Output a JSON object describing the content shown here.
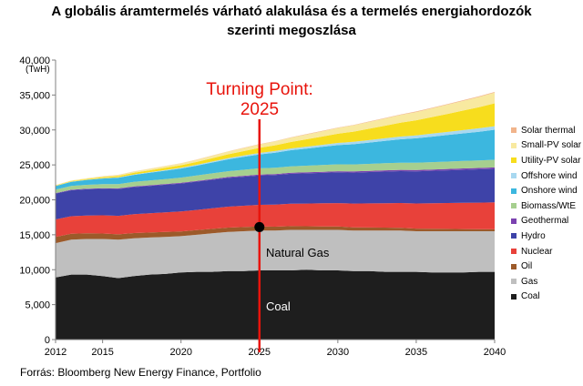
{
  "title": {
    "line1": "A globális áramtermelés várható alakulása és a termelés energiahordozók",
    "line2": "szerinti megoszlása"
  },
  "source": "Forrás: Bloomberg New Energy Finance, Portfolio",
  "annotations": {
    "turning_point_line1": "Turning Point:",
    "turning_point_line2": "2025",
    "natural_gas": "Natural Gas",
    "coal": "Coal"
  },
  "colors": {
    "Coal": "#1e1e1e",
    "Gas": "#bfbfbf",
    "Oil": "#9c5a2a",
    "Nuclear": "#e8413a",
    "Hydro": "#3e43a8",
    "Geothermal": "#7b42b0",
    "Biomass/WtE": "#a6cf8f",
    "Onshore wind": "#3cb7df",
    "Offshore wind": "#a8d8f0",
    "Utility-PV solar": "#f7dd1d",
    "Small-PV solar": "#f8e9a0",
    "Solar thermal": "#f1b48b",
    "turning_point": "#e8140c"
  },
  "chart_data": {
    "type": "area",
    "stacked": true,
    "title": "A globális áramtermelés várható alakulása és a termelés energiahordozók szerinti megoszlása",
    "xlabel": "",
    "ylabel": "(TwH)",
    "xlim": [
      2012,
      2040
    ],
    "ylim": [
      0,
      40000
    ],
    "x_ticks": [
      2012,
      2015,
      2020,
      2025,
      2030,
      2035,
      2040
    ],
    "y_ticks": [
      0,
      5000,
      10000,
      15000,
      20000,
      25000,
      30000,
      35000,
      40000
    ],
    "y_tick_labels": [
      "0",
      "5,000",
      "10,000",
      "15,000",
      "20,000",
      "25,000",
      "30,000",
      "35,000",
      "40,000"
    ],
    "grid": false,
    "legend_position": "right",
    "turning_point": {
      "x": 2025,
      "y": 16100
    },
    "x": [
      2012,
      2013,
      2014,
      2015,
      2016,
      2017,
      2018,
      2019,
      2020,
      2021,
      2022,
      2023,
      2024,
      2025,
      2026,
      2027,
      2028,
      2029,
      2030,
      2031,
      2032,
      2033,
      2034,
      2035,
      2036,
      2037,
      2038,
      2039,
      2040
    ],
    "series": [
      {
        "name": "Coal",
        "values": [
          8900,
          9300,
          9300,
          9100,
          8800,
          9100,
          9300,
          9400,
          9600,
          9700,
          9700,
          9800,
          9800,
          9900,
          9900,
          9900,
          10000,
          9900,
          9900,
          9800,
          9800,
          9700,
          9700,
          9700,
          9600,
          9600,
          9600,
          9700,
          9700
        ]
      },
      {
        "name": "Gas",
        "values": [
          4900,
          5000,
          5100,
          5300,
          5500,
          5400,
          5300,
          5300,
          5200,
          5300,
          5500,
          5600,
          5700,
          5700,
          5700,
          5800,
          5700,
          5800,
          5800,
          5800,
          5800,
          5900,
          5900,
          5800,
          5900,
          5900,
          5900,
          5800,
          5800
        ]
      },
      {
        "name": "Oil",
        "values": [
          900,
          850,
          800,
          780,
          760,
          740,
          720,
          700,
          680,
          660,
          640,
          620,
          600,
          580,
          560,
          540,
          520,
          500,
          480,
          460,
          440,
          420,
          400,
          380,
          360,
          340,
          320,
          300,
          280
        ]
      },
      {
        "name": "Nuclear",
        "values": [
          2500,
          2500,
          2550,
          2600,
          2650,
          2700,
          2750,
          2800,
          2850,
          2900,
          2950,
          3000,
          3050,
          3100,
          3150,
          3200,
          3250,
          3300,
          3350,
          3400,
          3450,
          3500,
          3550,
          3600,
          3650,
          3700,
          3750,
          3800,
          3850
        ]
      },
      {
        "name": "Hydro",
        "values": [
          3700,
          3720,
          3760,
          3800,
          3840,
          3880,
          3920,
          3960,
          4000,
          4040,
          4080,
          4120,
          4160,
          4200,
          4240,
          4280,
          4320,
          4360,
          4400,
          4440,
          4480,
          4520,
          4560,
          4600,
          4640,
          4680,
          4720,
          4760,
          4800
        ]
      },
      {
        "name": "Geothermal",
        "values": [
          70,
          75,
          80,
          85,
          90,
          95,
          100,
          105,
          110,
          115,
          120,
          125,
          130,
          135,
          140,
          145,
          150,
          155,
          160,
          165,
          170,
          175,
          180,
          185,
          190,
          195,
          200,
          205,
          210
        ]
      },
      {
        "name": "Biomass/WtE",
        "values": [
          500,
          530,
          560,
          590,
          620,
          650,
          680,
          710,
          740,
          770,
          800,
          830,
          860,
          890,
          910,
          930,
          950,
          970,
          990,
          1000,
          1010,
          1020,
          1030,
          1040,
          1050,
          1060,
          1070,
          1080,
          1090
        ]
      },
      {
        "name": "Onshore wind",
        "values": [
          500,
          600,
          700,
          800,
          900,
          1000,
          1100,
          1200,
          1300,
          1400,
          1550,
          1700,
          1850,
          2000,
          2150,
          2300,
          2450,
          2600,
          2750,
          2900,
          3050,
          3200,
          3350,
          3500,
          3650,
          3800,
          3950,
          4100,
          4300
        ]
      },
      {
        "name": "Offshore wind",
        "values": [
          20,
          25,
          30,
          40,
          55,
          70,
          85,
          100,
          115,
          130,
          150,
          170,
          190,
          210,
          230,
          250,
          270,
          290,
          310,
          330,
          350,
          370,
          390,
          410,
          430,
          450,
          470,
          490,
          510
        ]
      },
      {
        "name": "Utility-PV solar",
        "values": [
          50,
          80,
          110,
          150,
          190,
          230,
          270,
          310,
          350,
          400,
          470,
          550,
          630,
          720,
          820,
          930,
          1050,
          1180,
          1320,
          1470,
          1630,
          1800,
          1980,
          2170,
          2370,
          2580,
          2800,
          3030,
          3270
        ]
      },
      {
        "name": "Small-PV solar",
        "values": [
          60,
          80,
          100,
          130,
          160,
          190,
          220,
          250,
          280,
          320,
          360,
          400,
          450,
          500,
          560,
          620,
          690,
          760,
          830,
          900,
          970,
          1040,
          1110,
          1180,
          1250,
          1320,
          1390,
          1460,
          1530
        ]
      },
      {
        "name": "Solar thermal",
        "values": [
          10,
          12,
          14,
          16,
          18,
          20,
          22,
          24,
          26,
          28,
          30,
          33,
          36,
          40,
          44,
          48,
          52,
          56,
          60,
          64,
          68,
          72,
          76,
          80,
          84,
          88,
          92,
          96,
          100
        ]
      }
    ]
  }
}
